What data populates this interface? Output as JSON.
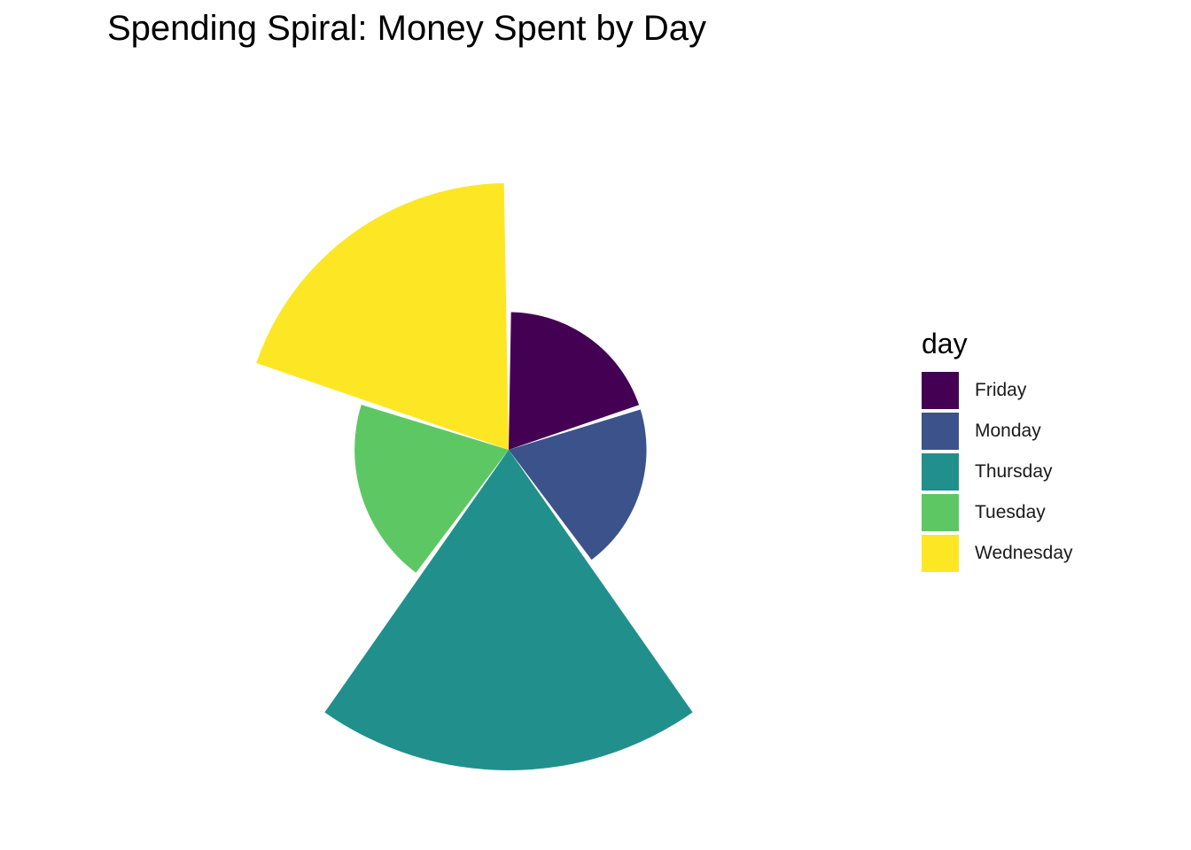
{
  "chart_data": {
    "type": "pie",
    "coord": "polar",
    "title": "Spending Spiral: Money Spent by Day",
    "legend": {
      "title": "day",
      "placement": "right",
      "entries": [
        {
          "label": "Friday",
          "color": "#440154"
        },
        {
          "label": "Monday",
          "color": "#3B528B"
        },
        {
          "label": "Thursday",
          "color": "#21908C"
        },
        {
          "label": "Tuesday",
          "color": "#5DC863"
        },
        {
          "label": "Wednesday",
          "color": "#FDE725"
        }
      ]
    },
    "segments_clockwise_from_top": [
      "Friday",
      "Monday",
      "Thursday",
      "Tuesday",
      "Wednesday"
    ],
    "values": [
      {
        "day": "Friday",
        "value": 12,
        "color": "#440154"
      },
      {
        "day": "Monday",
        "value": 12,
        "color": "#3B528B"
      },
      {
        "day": "Thursday",
        "value": 65,
        "color": "#21908C"
      },
      {
        "day": "Tuesday",
        "value": 15,
        "color": "#5DC863"
      },
      {
        "day": "Wednesday",
        "value": 45,
        "color": "#FDE725"
      }
    ],
    "axis_labels_shown": false,
    "grid": false
  }
}
